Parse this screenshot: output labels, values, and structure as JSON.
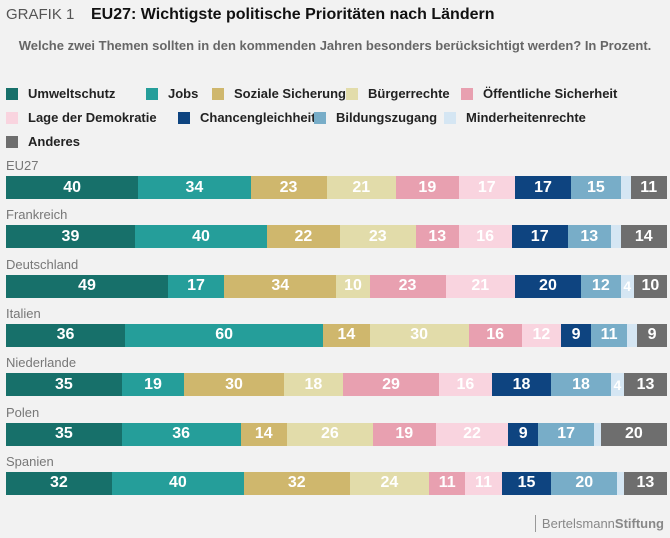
{
  "header": {
    "grafik_label": "GRAFIK 1",
    "title": "EU27: Wichtigste politische Prioritäten nach Ländern",
    "subtitle": "Welche zwei Themen sollten in den kommenden Jahren besonders berücksichtigt werden? In Prozent."
  },
  "footer": {
    "brand_light": "Bertelsmann",
    "brand_bold": "Stiftung"
  },
  "chart_data": {
    "type": "bar",
    "orientation": "horizontal-stacked",
    "title": "EU27: Wichtigste politische Prioritäten nach Ländern",
    "subtitle": "Welche zwei Themen sollten in den kommenden Jahren besonders berücksichtigt werden? In Prozent.",
    "xlabel": "",
    "ylabel": "",
    "legend_position": "top",
    "categories": [
      "EU27",
      "Frankreich",
      "Deutschland",
      "Italien",
      "Niederlande",
      "Polen",
      "Spanien"
    ],
    "series": [
      {
        "name": "Umweltschutz",
        "color": "#17706a",
        "label_color": "#ffffff",
        "values": [
          40,
          39,
          49,
          36,
          35,
          35,
          32
        ]
      },
      {
        "name": "Jobs",
        "color": "#259e9a",
        "label_color": "#ffffff",
        "values": [
          34,
          40,
          17,
          60,
          19,
          36,
          40
        ]
      },
      {
        "name": "Soziale Sicherung",
        "color": "#cfb76d",
        "label_color": "#ffffff",
        "values": [
          23,
          22,
          34,
          14,
          30,
          14,
          32
        ]
      },
      {
        "name": "Bürgerrechte",
        "color": "#e2dcaa",
        "label_color": "#ffffff",
        "values": [
          21,
          23,
          10,
          30,
          18,
          26,
          24
        ]
      },
      {
        "name": "Öffentliche Sicherheit",
        "color": "#e8a0b0",
        "label_color": "#ffffff",
        "values": [
          19,
          13,
          23,
          16,
          29,
          19,
          11
        ]
      },
      {
        "name": "Lage der Demokratie",
        "color": "#f9d4df",
        "label_color": "#ffffff",
        "values": [
          17,
          16,
          21,
          12,
          16,
          22,
          11
        ]
      },
      {
        "name": "Chancengleichheit",
        "color": "#0e4480",
        "label_color": "#ffffff",
        "values": [
          17,
          17,
          20,
          9,
          18,
          9,
          15
        ]
      },
      {
        "name": "Bildungszugang",
        "color": "#78adc8",
        "label_color": "#ffffff",
        "values": [
          15,
          13,
          12,
          11,
          18,
          17,
          20
        ]
      },
      {
        "name": "Minderheitenrechte",
        "color": "#d5e6f3",
        "label_color": "#ffffff",
        "values": [
          3,
          3,
          4,
          3,
          4,
          2,
          2
        ],
        "labeled": [
          false,
          false,
          true,
          false,
          true,
          false,
          false
        ]
      },
      {
        "name": "Anderes",
        "color": "#6e6e6e",
        "label_color": "#ffffff",
        "values": [
          11,
          14,
          10,
          9,
          13,
          20,
          13
        ]
      }
    ],
    "total_per_row": 200
  }
}
